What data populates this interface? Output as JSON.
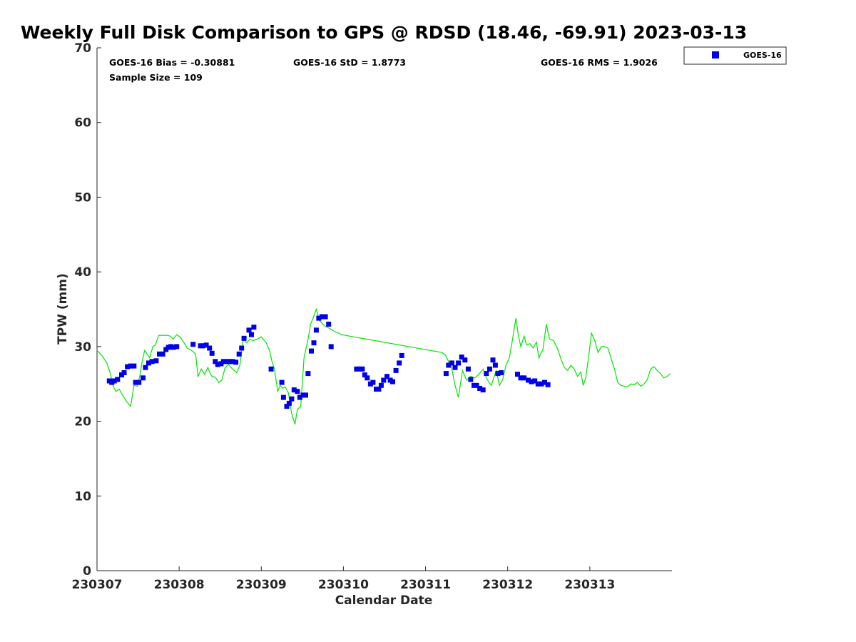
{
  "title": "Weekly Full Disk Comparison to GPS @ RDSD (18.46, -69.91) 2023-03-13",
  "stats": {
    "bias": "GOES-16 Bias = -0.30881",
    "std": "GOES-16 StD = 1.8773",
    "rms": "GOES-16 RMS = 1.9026",
    "sample": "Sample Size = 109"
  },
  "legend": {
    "label": "GOES-16"
  },
  "colors": {
    "goes": "#0000e6",
    "gps": "#00e600",
    "axis": "#262626"
  },
  "chart_data": {
    "type": "scatter",
    "xlabel": "Calendar Date",
    "ylabel": "TPW (mm)",
    "xlim": [
      0,
      7
    ],
    "ylim": [
      0,
      70
    ],
    "x_ticks": [
      0,
      1,
      2,
      3,
      4,
      5,
      6
    ],
    "x_tick_labels": [
      "230307",
      "230308",
      "230309",
      "230310",
      "230311",
      "230312",
      "230313"
    ],
    "y_ticks": [
      0,
      10,
      20,
      30,
      40,
      50,
      60,
      70
    ],
    "grid": false,
    "legend_position": "outside-top-right",
    "series": [
      {
        "name": "GOES-16",
        "type": "scatter",
        "x": [
          0.15,
          0.18,
          0.21,
          0.25,
          0.3,
          0.33,
          0.37,
          0.41,
          0.45,
          0.47,
          0.51,
          0.56,
          0.59,
          0.63,
          0.67,
          0.72,
          0.76,
          0.8,
          0.84,
          0.87,
          0.9,
          0.93,
          0.97,
          1.17,
          1.26,
          1.29,
          1.33,
          1.37,
          1.4,
          1.44,
          1.47,
          1.51,
          1.54,
          1.58,
          1.61,
          1.65,
          1.69,
          1.73,
          1.76,
          1.79,
          1.85,
          1.88,
          1.91,
          2.12,
          2.25,
          2.27,
          2.31,
          2.34,
          2.37,
          2.4,
          2.44,
          2.47,
          2.51,
          2.54,
          2.57,
          2.61,
          2.64,
          2.67,
          2.7,
          2.74,
          2.78,
          2.82,
          2.85,
          3.16,
          3.2,
          3.23,
          3.26,
          3.29,
          3.33,
          3.36,
          3.4,
          3.43,
          3.46,
          3.49,
          3.53,
          3.57,
          3.6,
          3.64,
          3.68,
          3.71,
          4.25,
          4.28,
          4.32,
          4.36,
          4.4,
          4.44,
          4.48,
          4.52,
          4.55,
          4.59,
          4.62,
          4.66,
          4.7,
          4.74,
          4.78,
          4.82,
          4.85,
          4.88,
          4.92,
          5.12,
          5.16,
          5.2,
          5.25,
          5.29,
          5.33,
          5.37,
          5.41,
          5.45,
          5.49
        ],
        "y": [
          25.4,
          25.2,
          25.4,
          25.6,
          26.2,
          26.5,
          27.3,
          27.4,
          27.4,
          25.2,
          25.2,
          25.8,
          27.2,
          27.8,
          28.0,
          28.1,
          29.0,
          29.0,
          29.6,
          29.9,
          30.0,
          29.9,
          30.0,
          30.3,
          30.1,
          30.1,
          30.2,
          29.8,
          29.1,
          28.0,
          27.6,
          27.7,
          28.0,
          28.0,
          28.0,
          28.0,
          27.9,
          29.0,
          29.8,
          31.1,
          32.2,
          31.6,
          32.6,
          27.0,
          25.2,
          23.2,
          22.0,
          22.4,
          23.0,
          24.2,
          24.0,
          23.2,
          23.5,
          23.5,
          26.4,
          29.4,
          30.5,
          32.2,
          33.8,
          34.0,
          34.0,
          33.0,
          30.0,
          27.0,
          27.0,
          27.0,
          26.2,
          25.8,
          25.0,
          25.2,
          24.3,
          24.3,
          24.8,
          25.5,
          26.0,
          25.5,
          25.3,
          26.8,
          27.8,
          28.8,
          26.4,
          27.5,
          27.8,
          27.2,
          27.8,
          28.6,
          28.2,
          27.0,
          25.6,
          24.8,
          24.8,
          24.4,
          24.2,
          26.4,
          27.0,
          28.2,
          27.5,
          26.4,
          26.5,
          26.3,
          25.8,
          25.8,
          25.5,
          25.3,
          25.4,
          25.0,
          25.0,
          25.2,
          24.9
        ]
      },
      {
        "name": "GPS",
        "type": "line",
        "x": [
          0.0,
          0.06,
          0.12,
          0.16,
          0.2,
          0.23,
          0.27,
          0.31,
          0.34,
          0.37,
          0.41,
          0.45,
          0.49,
          0.52,
          0.55,
          0.58,
          0.61,
          0.64,
          0.68,
          0.71,
          0.75,
          0.8,
          0.85,
          0.89,
          0.93,
          0.97,
          1.02,
          1.1,
          1.15,
          1.2,
          1.23,
          1.27,
          1.31,
          1.35,
          1.38,
          1.4,
          1.44,
          1.48,
          1.52,
          1.56,
          1.6,
          1.65,
          1.7,
          1.74,
          1.78,
          1.82,
          1.86,
          1.9,
          1.95,
          2.0,
          2.06,
          2.1,
          2.13,
          2.16,
          2.2,
          2.23,
          2.26,
          2.29,
          2.33,
          2.37,
          2.41,
          2.44,
          2.48,
          2.52,
          2.57,
          2.6,
          2.63,
          2.67,
          2.71,
          2.75,
          2.78,
          2.82,
          2.85,
          2.88,
          2.92,
          2.96,
          3.02,
          4.2,
          4.24,
          4.28,
          4.32,
          4.36,
          4.4,
          4.45,
          4.5,
          4.55,
          4.6,
          4.65,
          4.7,
          4.75,
          4.8,
          4.86,
          4.9,
          4.94,
          4.98,
          5.02,
          5.06,
          5.1,
          5.13,
          5.16,
          5.2,
          5.23,
          5.27,
          5.31,
          5.35,
          5.38,
          5.4,
          5.43,
          5.47,
          5.51,
          5.56,
          5.61,
          5.65,
          5.69,
          5.73,
          5.77,
          5.81,
          5.85,
          5.89,
          5.92,
          5.95,
          5.98,
          6.02,
          6.06,
          6.1,
          6.14,
          6.18,
          6.22,
          6.26,
          6.3,
          6.34,
          6.38,
          6.42,
          6.46,
          6.5,
          6.54,
          6.58,
          6.62,
          6.66,
          6.7,
          6.74,
          6.78,
          6.82,
          6.86,
          6.9,
          6.94,
          6.98
        ],
        "y": [
          29.5,
          28.8,
          27.8,
          26.5,
          24.6,
          24.0,
          24.3,
          23.5,
          23.0,
          22.5,
          22.0,
          24.8,
          24.7,
          26.0,
          28.0,
          29.5,
          29.0,
          28.5,
          30.0,
          30.2,
          31.5,
          31.5,
          31.5,
          31.4,
          31.0,
          31.6,
          31.2,
          29.8,
          29.5,
          29.0,
          26.0,
          27.0,
          26.3,
          27.2,
          26.3,
          26.0,
          25.9,
          25.2,
          25.5,
          27.2,
          27.6,
          27.0,
          26.5,
          27.5,
          31.0,
          30.5,
          31.0,
          30.8,
          31.0,
          31.3,
          30.5,
          29.5,
          28.0,
          27.0,
          24.0,
          24.8,
          24.4,
          24.6,
          23.8,
          21.0,
          19.6,
          21.6,
          22.0,
          28.5,
          31.0,
          33.0,
          33.8,
          35.0,
          33.5,
          33.0,
          32.7,
          32.5,
          32.3,
          32.1,
          31.9,
          31.7,
          31.5,
          29.2,
          28.9,
          28.0,
          27.0,
          24.8,
          23.2,
          26.8,
          25.5,
          26.0,
          25.8,
          26.3,
          27.0,
          25.6,
          24.8,
          26.8,
          24.8,
          25.6,
          27.5,
          28.5,
          31.0,
          33.8,
          31.5,
          30.0,
          31.4,
          30.2,
          30.4,
          29.8,
          30.6,
          28.5,
          29.0,
          29.6,
          33.0,
          31.0,
          30.8,
          29.6,
          28.3,
          27.2,
          26.8,
          27.5,
          27.0,
          26.0,
          26.6,
          24.8,
          25.8,
          28.2,
          31.8,
          30.8,
          29.2,
          30.0,
          30.0,
          29.8,
          28.4,
          27.0,
          25.2,
          24.8,
          24.7,
          24.6,
          25.0,
          24.9,
          25.2,
          24.7,
          25.0,
          25.6,
          27.0,
          27.3,
          26.8,
          26.4,
          25.8,
          26.0,
          26.4
        ]
      }
    ]
  }
}
